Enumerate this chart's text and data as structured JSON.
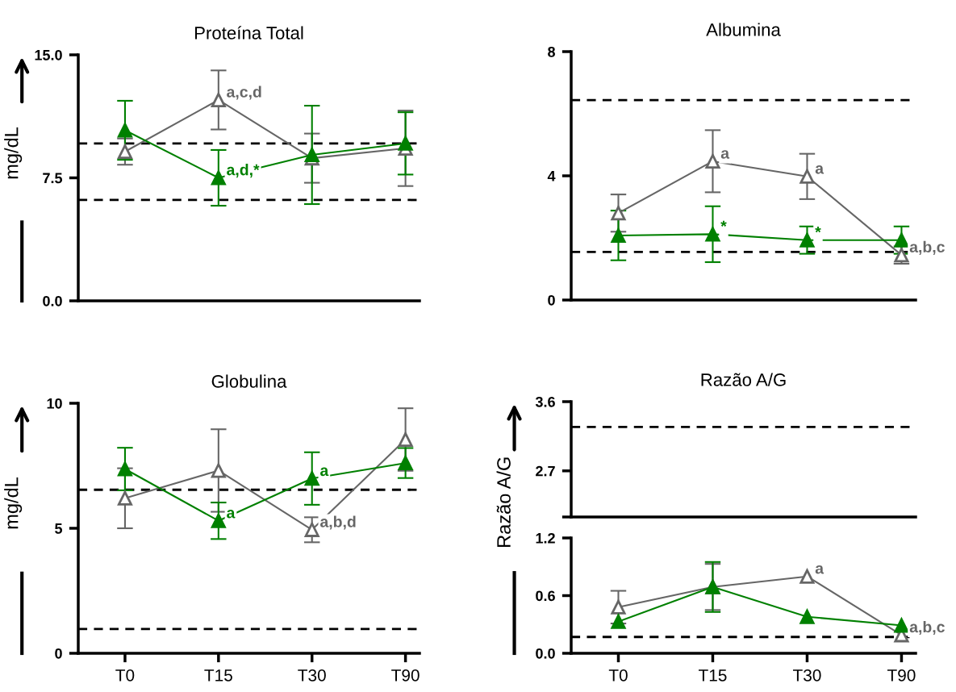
{
  "chart_data": [
    {
      "type": "line",
      "title": "Proteína Total",
      "ylabel": "mg/dL",
      "categories": [
        "T0",
        "T15",
        "T30",
        "T90"
      ],
      "ylim": [
        0,
        15
      ],
      "yticks": [
        {
          "value": 0,
          "label": "0.0"
        },
        7.5,
        {
          "value": 15,
          "label": "15.0"
        }
      ],
      "tick_labels": "y",
      "marker": "triangle",
      "line_style": "solid",
      "grid": false,
      "legend": false,
      "series": [
        {
          "color": "#666666",
          "values": [
            9.1,
            12.25,
            8.7,
            9.3
          ],
          "errors": [
            0.8,
            1.8,
            1.5,
            2.3
          ]
        },
        {
          "color": "#008000",
          "values": [
            10.4,
            7.5,
            8.9,
            9.6
          ],
          "errors": [
            1.8,
            1.7,
            3.0,
            1.9
          ]
        }
      ],
      "ref_lines": [
        {
          "axis": "y",
          "value": 9.6,
          "color": "#000000",
          "line_style": "dashed"
        },
        {
          "axis": "y",
          "value": 6.15,
          "color": "#000000",
          "line_style": "dashed"
        }
      ],
      "annotations": [
        {
          "text": "a,c,d",
          "x": "T15",
          "y": 12.25
        },
        {
          "text": "a,d,*",
          "x": "T15",
          "y": 7.5
        }
      ]
    },
    {
      "type": "line",
      "title": "Albumina",
      "categories": [
        "T0",
        "T15",
        "T30",
        "T90"
      ],
      "ylim": [
        0,
        8
      ],
      "yticks": [
        0,
        4,
        8
      ],
      "tick_labels": "y",
      "marker": "triangle",
      "line_style": "solid",
      "grid": false,
      "legend": false,
      "series": [
        {
          "color": "#666666",
          "values": [
            2.8,
            4.47,
            3.98,
            1.45
          ],
          "errors": [
            0.6,
            1.0,
            0.73,
            0.28
          ]
        },
        {
          "color": "#008000",
          "values": [
            2.08,
            2.12,
            1.93,
            1.93
          ],
          "errors": [
            0.8,
            0.9,
            0.44,
            0.44
          ]
        }
      ],
      "ref_lines": [
        {
          "axis": "y",
          "value": 6.44,
          "color": "#000000",
          "line_style": "dashed"
        },
        {
          "axis": "y",
          "value": 1.55,
          "color": "#000000",
          "line_style": "dashed"
        }
      ],
      "annotations": [
        {
          "text": "a",
          "x": "T15",
          "y": 4.47
        },
        {
          "text": "a",
          "x": "T30",
          "y": 3.98
        },
        {
          "text": "a,b,c",
          "x": "T90",
          "y": 1.45
        },
        {
          "text": "*",
          "x": "T15",
          "y": 2.12
        },
        {
          "text": "*",
          "x": "T30",
          "y": 1.93
        }
      ]
    },
    {
      "type": "line",
      "title": "Globulina",
      "ylabel": "mg/dL",
      "categories": [
        "T0",
        "T15",
        "T30",
        "T90"
      ],
      "ylim": [
        0,
        10
      ],
      "yticks": [
        0,
        5,
        10
      ],
      "marker": "triangle",
      "line_style": "solid",
      "grid": false,
      "legend": false,
      "series": [
        {
          "color": "#666666",
          "values": [
            6.2,
            7.31,
            4.94,
            8.55
          ],
          "errors": [
            1.2,
            1.65,
            0.5,
            1.25
          ]
        },
        {
          "color": "#008000",
          "values": [
            7.37,
            5.3,
            6.99,
            7.61
          ],
          "errors": [
            0.85,
            0.73,
            1.05,
            0.6
          ]
        }
      ],
      "ref_lines": [
        {
          "axis": "y",
          "value": 6.54,
          "color": "#000000",
          "line_style": "dashed"
        },
        {
          "axis": "y",
          "value": 0.97,
          "color": "#000000",
          "line_style": "dashed"
        }
      ],
      "annotations": [
        {
          "text": "a",
          "x": "T15",
          "y": 5.3
        },
        {
          "text": "a",
          "x": "T30",
          "y": 6.99
        },
        {
          "text": "a,b,d",
          "x": "T30",
          "y": 4.94
        }
      ]
    },
    {
      "type": "line",
      "title": "Razão A/G",
      "categories": [
        "T0",
        "T15",
        "T30",
        "T90"
      ],
      "ylim": [
        2.1,
        3.6
      ],
      "yticks": [
        {
          "value": 2.1,
          "label": null
        },
        2.7,
        3.6
      ],
      "tick_labels": "y",
      "grid": false,
      "legend": false,
      "ref_lines": [
        {
          "axis": "y",
          "value": 3.27,
          "color": "#000000",
          "line_style": "dashed"
        }
      ]
    },
    {
      "type": "line",
      "ylabel": "Razão A/G",
      "categories": [
        "T0",
        "T15",
        "T30",
        "T90"
      ],
      "ylim": [
        0,
        1.2
      ],
      "yticks": [
        {
          "value": 0,
          "label": "0.0"
        },
        0.6,
        1.2
      ],
      "marker": "triangle",
      "line_style": "solid",
      "grid": false,
      "legend": false,
      "series": [
        {
          "color": "#666666",
          "values": [
            0.48,
            0.69,
            0.8,
            0.19
          ],
          "errors": [
            0.17,
            0.24,
            null,
            null
          ]
        },
        {
          "color": "#008000",
          "values": [
            0.33,
            0.69,
            0.38,
            0.29
          ],
          "errors": [
            null,
            0.26,
            null,
            null
          ]
        }
      ],
      "ref_lines": [
        {
          "axis": "y",
          "value": 0.17,
          "color": "#000000",
          "line_style": "dashed"
        }
      ],
      "annotations": [
        {
          "text": "a",
          "x": "T30",
          "y": 0.8
        },
        {
          "text": "a,b,c",
          "x": "T90",
          "y": 0.19
        }
      ]
    }
  ]
}
